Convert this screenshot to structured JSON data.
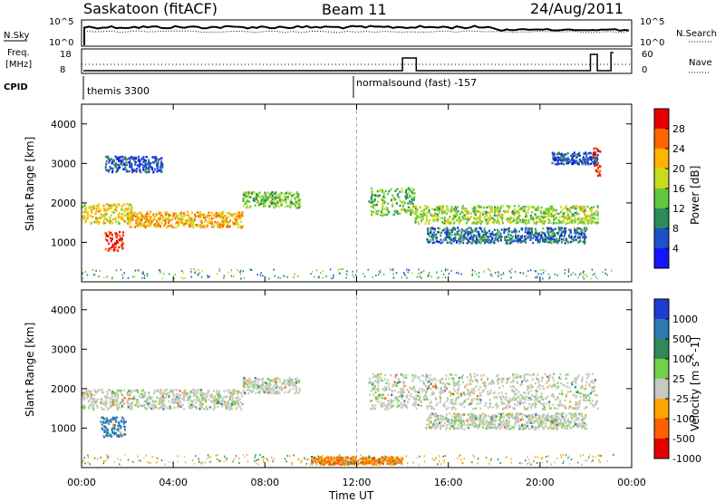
{
  "header": {
    "station": "Saskatoon (fitACF)",
    "beam": "Beam 11",
    "date": "24/Aug/2011"
  },
  "side_labels": {
    "nsky": "N.Sky",
    "freq_line1": "Freq.",
    "freq_line2": "[MHz]",
    "cpid": "CPID",
    "nsearch": "N.Search",
    "nave": "Nave",
    "nsky_ticks": [
      "10^5",
      "10^0"
    ],
    "nsearch_ticks": [
      "10^5",
      "10^0"
    ],
    "freq_ticks": [
      "18",
      "8"
    ],
    "nave_ticks": [
      "60",
      "0"
    ]
  },
  "cpid_annotations": [
    "themis 3300",
    "normalsound (fast) -157"
  ],
  "time_axis": {
    "label": "Time UT",
    "ticks": [
      "00:00",
      "04:00",
      "08:00",
      "12:00",
      "16:00",
      "20:00",
      "00:00"
    ]
  },
  "range_axis": {
    "label": "Slant Range [km]",
    "ticks": [
      "1000",
      "2000",
      "3000",
      "4000"
    ]
  },
  "colors": {
    "power": [
      "#1414ff",
      "#1e50c8",
      "#2d8a5a",
      "#5fc83c",
      "#c8dc1e",
      "#ffb400",
      "#ff6400",
      "#e60000"
    ],
    "velocity": [
      "#1e3cd2",
      "#2d7ab4",
      "#2f8a55",
      "#70d24a",
      "#c8c8c0",
      "#ffa500",
      "#ff6000",
      "#e60000"
    ]
  },
  "chart_data": [
    {
      "type": "heatmap",
      "title": "",
      "xlabel": "",
      "ylabel": "Slant Range [km]",
      "xlim": [
        "00:00",
        "00:00"
      ],
      "ylim": [
        0,
        4500
      ],
      "colorbar": {
        "label": "Power [dB]",
        "ticks": [
          "4",
          "8",
          "12",
          "16",
          "20",
          "24",
          "28"
        ],
        "range": [
          0,
          32
        ]
      },
      "scatter_bands": [
        {
          "t_start": 0.0,
          "t_end": 2.2,
          "range_km": [
            1500,
            2000
          ],
          "value": 20
        },
        {
          "t_start": 1.0,
          "t_end": 1.8,
          "range_km": [
            800,
            1300
          ],
          "value": 29
        },
        {
          "t_start": 2.0,
          "t_end": 7.0,
          "range_km": [
            1400,
            1800
          ],
          "value": 22
        },
        {
          "t_start": 7.0,
          "t_end": 9.5,
          "range_km": [
            1900,
            2300
          ],
          "value": 14
        },
        {
          "t_start": 12.5,
          "t_end": 14.5,
          "range_km": [
            1700,
            2400
          ],
          "value": 14
        },
        {
          "t_start": 14.5,
          "t_end": 22.5,
          "range_km": [
            1500,
            1950
          ],
          "value": 16
        },
        {
          "t_start": 15.0,
          "t_end": 22.0,
          "range_km": [
            1000,
            1400
          ],
          "value": 8
        },
        {
          "t_start": 1.0,
          "t_end": 3.5,
          "range_km": [
            2800,
            3200
          ],
          "value": 6
        },
        {
          "t_start": 20.5,
          "t_end": 22.5,
          "range_km": [
            3000,
            3300
          ],
          "value": 6
        },
        {
          "t_start": 22.3,
          "t_end": 22.6,
          "range_km": [
            2700,
            3500
          ],
          "value": 28
        }
      ]
    },
    {
      "type": "heatmap",
      "title": "",
      "xlabel": "Time UT",
      "ylabel": "Slant Range [km]",
      "xlim": [
        "00:00",
        "00:00"
      ],
      "ylim": [
        0,
        4500
      ],
      "colorbar": {
        "label": "Velocity [m s^-1]",
        "ticks": [
          "1000",
          "500",
          "100",
          "25",
          "-25",
          "-100",
          "-500",
          "-1000"
        ]
      },
      "scatter_bands": [
        {
          "t_start": 0.0,
          "t_end": 7.0,
          "range_km": [
            1500,
            2000
          ],
          "value": 0
        },
        {
          "t_start": 0.8,
          "t_end": 1.9,
          "range_km": [
            800,
            1300
          ],
          "value": 300
        },
        {
          "t_start": 7.0,
          "t_end": 9.5,
          "range_km": [
            1900,
            2300
          ],
          "value": 0
        },
        {
          "t_start": 12.5,
          "t_end": 22.5,
          "range_km": [
            1500,
            2400
          ],
          "value": 0
        },
        {
          "t_start": 15.0,
          "t_end": 22.0,
          "range_km": [
            1000,
            1400
          ],
          "value": 0
        },
        {
          "t_start": 10.0,
          "t_end": 14.0,
          "range_km": [
            100,
            300
          ],
          "value": -100
        }
      ]
    }
  ]
}
